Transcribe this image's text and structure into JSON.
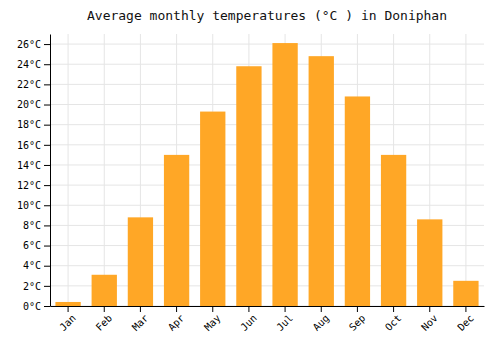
{
  "chart_data": {
    "type": "bar",
    "title": "Average monthly temperatures (°C ) in Doniphan",
    "categories": [
      "Jan",
      "Feb",
      "Mar",
      "Apr",
      "May",
      "Jun",
      "Jul",
      "Aug",
      "Sep",
      "Oct",
      "Nov",
      "Dec"
    ],
    "values": [
      0.4,
      3.1,
      8.8,
      15.0,
      19.3,
      23.8,
      26.1,
      24.8,
      20.8,
      15.0,
      8.6,
      2.5
    ],
    "color": "#FFA726",
    "ylim": [
      0,
      27
    ],
    "yticks": [
      {
        "value": 0,
        "label": "0°C"
      },
      {
        "value": 2,
        "label": "2°C"
      },
      {
        "value": 4,
        "label": "4°C"
      },
      {
        "value": 6,
        "label": "6°C"
      },
      {
        "value": 8,
        "label": "8°C"
      },
      {
        "value": 10,
        "label": "10°C"
      },
      {
        "value": 12,
        "label": "12°C"
      },
      {
        "value": 14,
        "label": "14°C"
      },
      {
        "value": 16,
        "label": "16°C"
      },
      {
        "value": 18,
        "label": "18°C"
      },
      {
        "value": 20,
        "label": "20°C"
      },
      {
        "value": 22,
        "label": "22°C"
      },
      {
        "value": 24,
        "label": "24°C"
      },
      {
        "value": 26,
        "label": "26°C"
      }
    ],
    "grid": true
  }
}
